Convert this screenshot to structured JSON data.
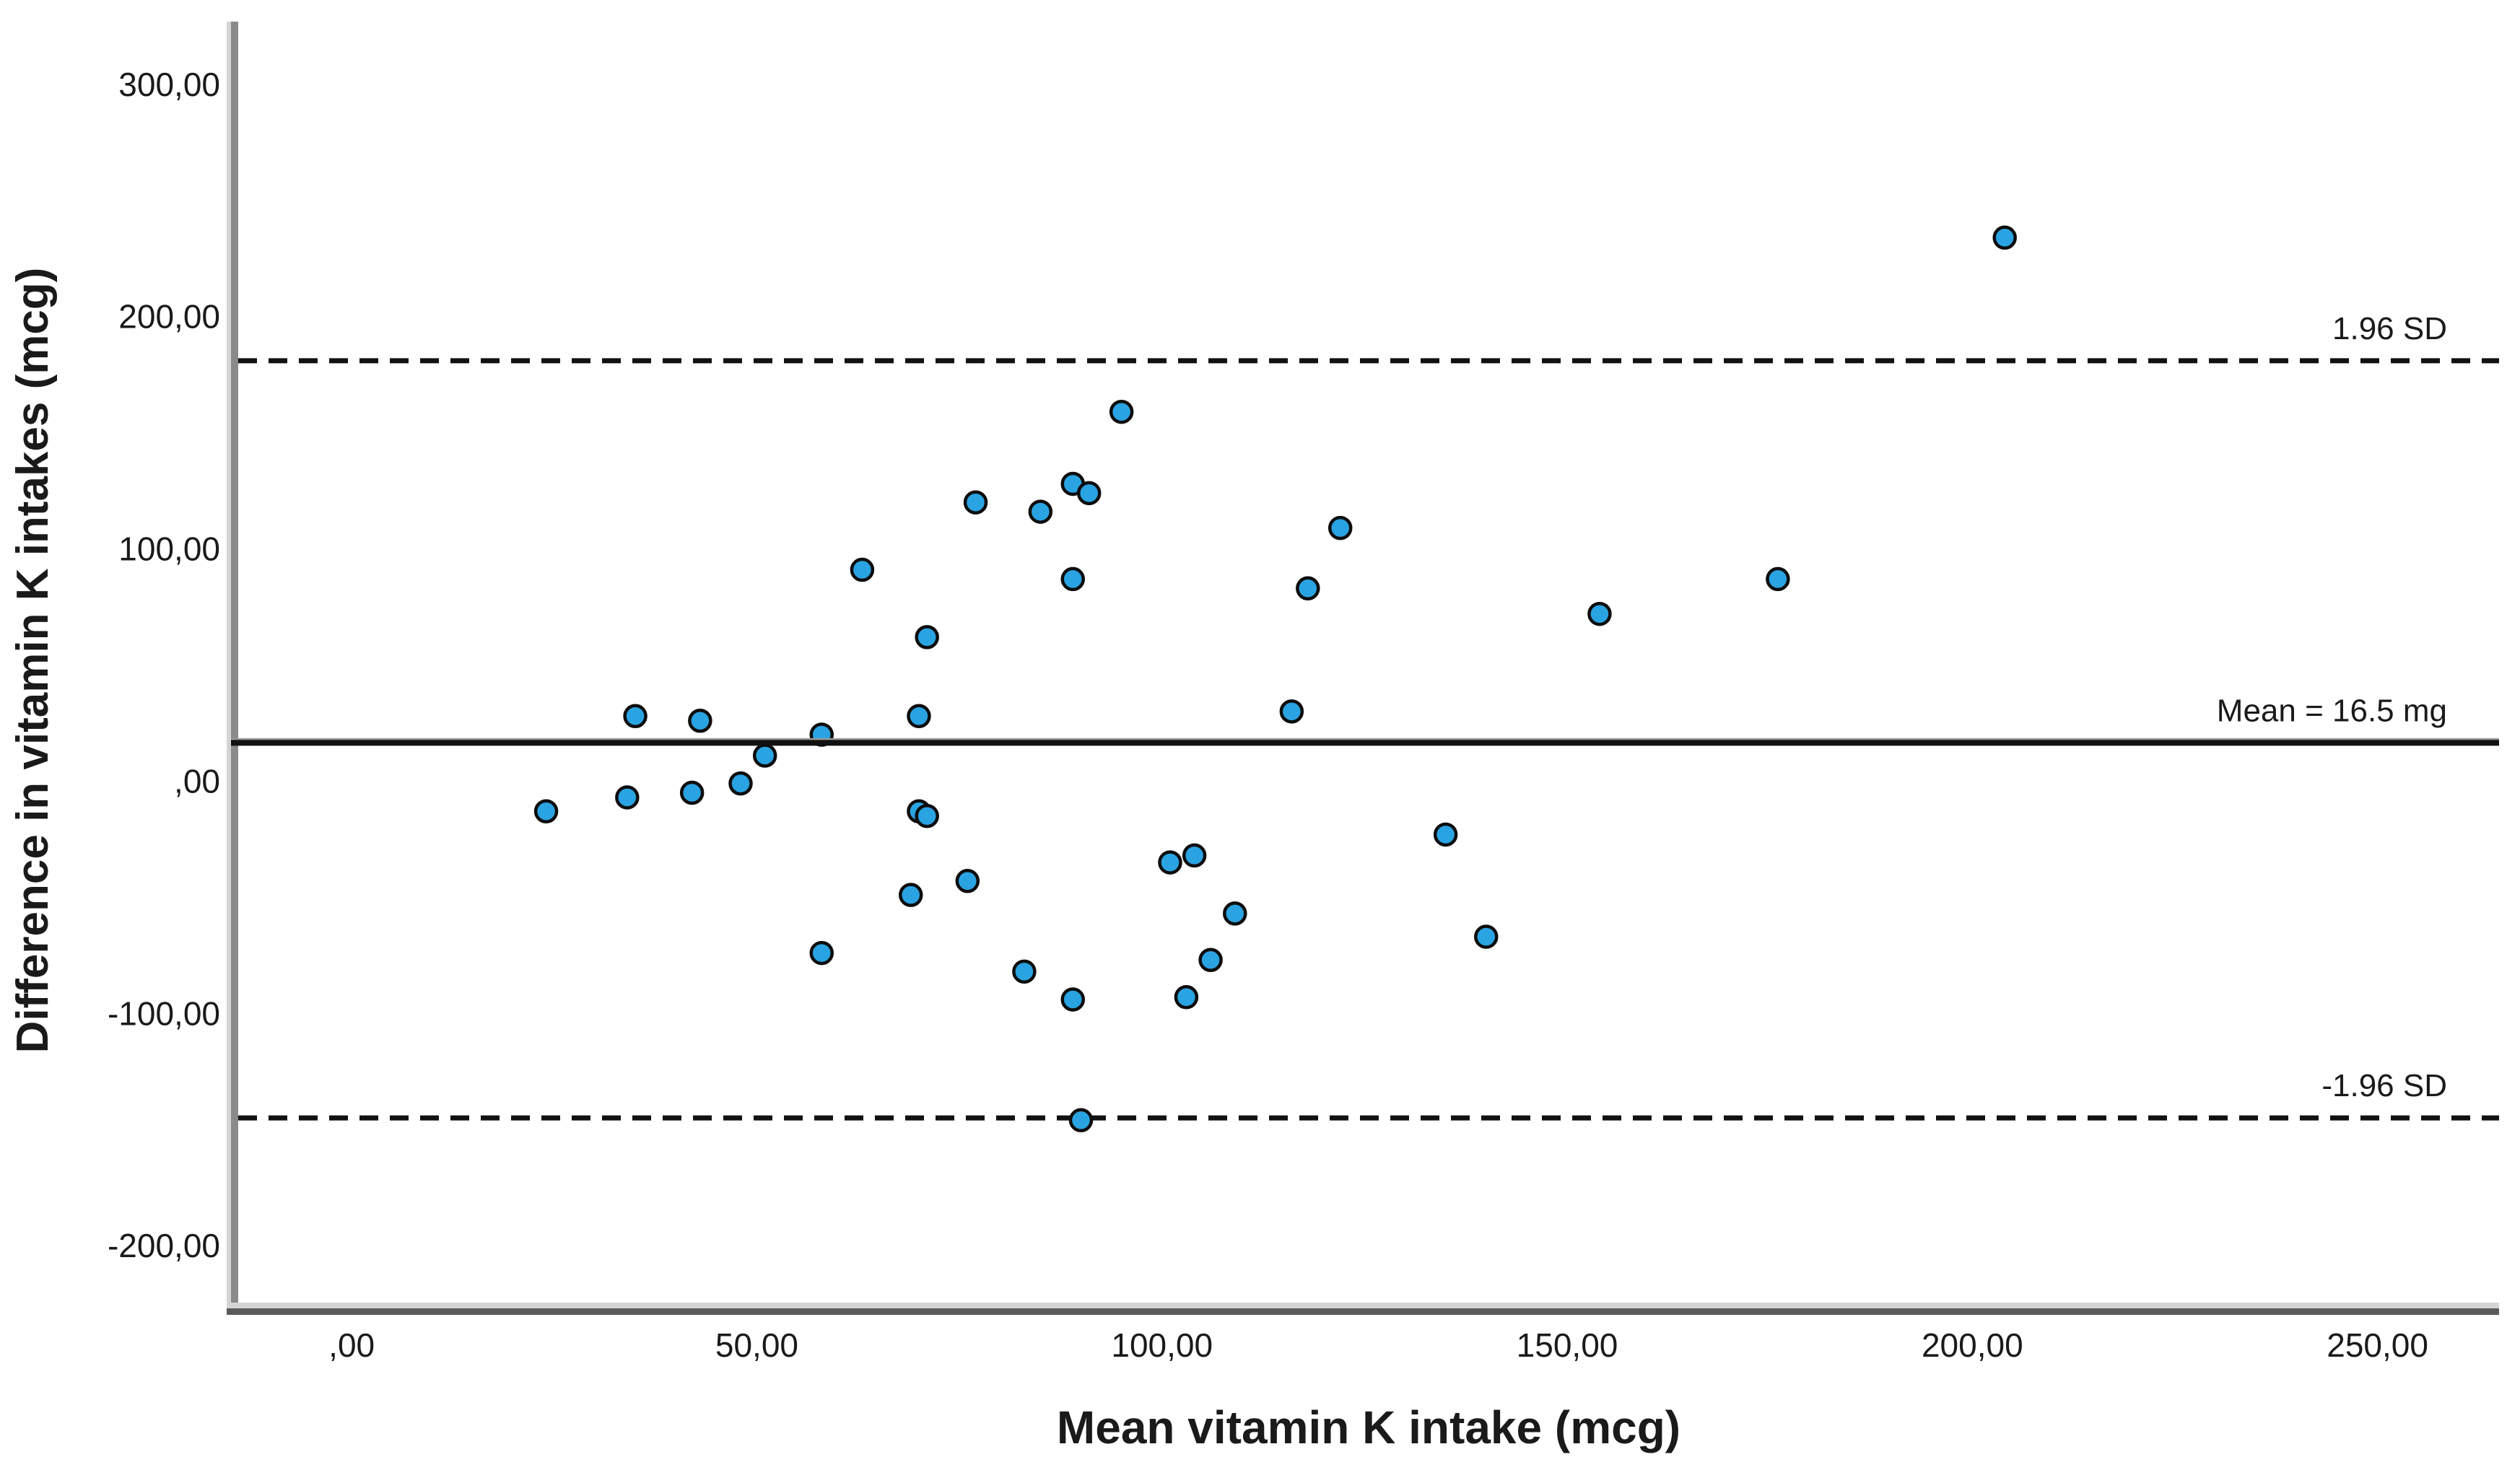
{
  "chart_data": {
    "type": "scatter",
    "title": "",
    "xlabel": "Mean vitamin K intake (mcg)",
    "ylabel": "Difference in vitamin K intakes (mcg)",
    "xlim": [
      -14,
      265
    ],
    "ylim": [
      -227,
      327
    ],
    "grid": false,
    "legend": false,
    "x_ticks": [
      {
        "value": 0,
        "label": ",00"
      },
      {
        "value": 50,
        "label": "50,00"
      },
      {
        "value": 100,
        "label": "100,00"
      },
      {
        "value": 150,
        "label": "150,00"
      },
      {
        "value": 200,
        "label": "200,00"
      },
      {
        "value": 250,
        "label": "250,00"
      }
    ],
    "y_ticks": [
      {
        "value": 300,
        "label": "300,00"
      },
      {
        "value": 200,
        "label": "200,00"
      },
      {
        "value": 100,
        "label": "100,00"
      },
      {
        "value": 0,
        "label": ",00"
      },
      {
        "value": -100,
        "label": "-100,00"
      },
      {
        "value": -200,
        "label": "-200,00"
      }
    ],
    "reference_lines": [
      {
        "value": 181,
        "style": "dashed",
        "label": "1.96 SD"
      },
      {
        "value": 16.5,
        "style": "solid",
        "label": "Mean = 16.5 mg"
      },
      {
        "value": -145,
        "style": "dashed",
        "label": "-1.96 SD"
      }
    ],
    "points": [
      [
        24,
        -13
      ],
      [
        34,
        -7
      ],
      [
        35,
        28
      ],
      [
        42,
        -5
      ],
      [
        43,
        26
      ],
      [
        48,
        -1
      ],
      [
        51,
        11
      ],
      [
        58,
        20
      ],
      [
        58,
        -74
      ],
      [
        63,
        91
      ],
      [
        69,
        -49
      ],
      [
        70,
        28
      ],
      [
        70,
        -13
      ],
      [
        71,
        -15
      ],
      [
        71,
        62
      ],
      [
        76,
        -43
      ],
      [
        77,
        120
      ],
      [
        83,
        -82
      ],
      [
        85,
        116
      ],
      [
        89,
        128
      ],
      [
        89,
        87
      ],
      [
        89,
        -94
      ],
      [
        90,
        -146
      ],
      [
        91,
        124
      ],
      [
        95,
        159
      ],
      [
        101,
        -35
      ],
      [
        103,
        -93
      ],
      [
        104,
        -32
      ],
      [
        106,
        -77
      ],
      [
        109,
        -57
      ],
      [
        116,
        30
      ],
      [
        118,
        83
      ],
      [
        122,
        109
      ],
      [
        135,
        -23
      ],
      [
        140,
        -67
      ],
      [
        154,
        72
      ],
      [
        176,
        87
      ],
      [
        204,
        234
      ]
    ],
    "point_fill": "#2aa3e2",
    "point_stroke": "#0d0d0d",
    "line_color": "#111111",
    "axis_color": "#8a8a8a",
    "axis_shadow_color": "#d4d4d4"
  }
}
